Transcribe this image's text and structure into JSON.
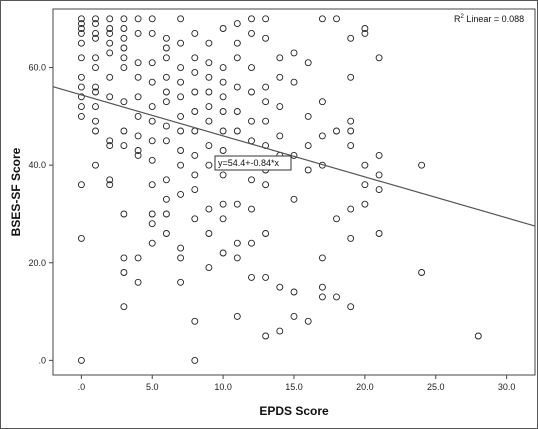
{
  "chart_data": {
    "type": "scatter",
    "xlabel": "EPDS Score",
    "ylabel": "BSES-SF Score",
    "xlim": [
      -2,
      32
    ],
    "ylim": [
      -3,
      72
    ],
    "xticks": [
      ".0",
      "5.0",
      "10.0",
      "15.0",
      "20.0",
      "25.0",
      "30.0"
    ],
    "xtick_values": [
      0,
      5,
      10,
      15,
      20,
      25,
      30
    ],
    "yticks": [
      ".0",
      "20.0",
      "40.0",
      "60.0"
    ],
    "ytick_values": [
      0,
      20,
      40,
      60
    ],
    "r2_label": "R",
    "r2_sup": "2",
    "r2_value": " Linear = 0.088",
    "equation": "y=54.4+-0.84*x",
    "fit": {
      "intercept": 54.4,
      "slope": -0.84,
      "x_range": [
        -2,
        32
      ]
    },
    "grid": false,
    "points": [
      [
        0,
        70
      ],
      [
        0,
        69
      ],
      [
        0,
        68
      ],
      [
        0,
        67
      ],
      [
        0,
        65
      ],
      [
        0,
        62
      ],
      [
        0,
        58
      ],
      [
        0,
        56
      ],
      [
        0,
        54
      ],
      [
        0,
        52
      ],
      [
        0,
        50
      ],
      [
        0,
        36
      ],
      [
        0,
        25
      ],
      [
        0,
        0
      ],
      [
        1,
        70
      ],
      [
        1,
        69
      ],
      [
        1,
        67
      ],
      [
        1,
        66
      ],
      [
        1,
        62
      ],
      [
        1,
        60
      ],
      [
        1,
        56
      ],
      [
        1,
        55
      ],
      [
        1,
        52
      ],
      [
        1,
        49
      ],
      [
        1,
        47
      ],
      [
        1,
        40
      ],
      [
        2,
        70
      ],
      [
        2,
        68
      ],
      [
        2,
        67
      ],
      [
        2,
        65
      ],
      [
        2,
        63
      ],
      [
        2,
        58
      ],
      [
        2,
        54
      ],
      [
        2,
        45
      ],
      [
        2,
        44
      ],
      [
        2,
        37
      ],
      [
        2,
        36
      ],
      [
        3,
        70
      ],
      [
        3,
        68
      ],
      [
        3,
        66
      ],
      [
        3,
        64
      ],
      [
        3,
        62
      ],
      [
        3,
        60
      ],
      [
        3,
        53
      ],
      [
        3,
        47
      ],
      [
        3,
        44
      ],
      [
        3,
        30
      ],
      [
        3,
        21
      ],
      [
        3,
        18
      ],
      [
        3,
        11
      ],
      [
        4,
        70
      ],
      [
        4,
        67
      ],
      [
        4,
        61
      ],
      [
        4,
        58
      ],
      [
        4,
        54
      ],
      [
        4,
        50
      ],
      [
        4,
        46
      ],
      [
        4,
        43
      ],
      [
        4,
        42
      ],
      [
        4,
        21
      ],
      [
        4,
        16
      ],
      [
        5,
        70
      ],
      [
        5,
        67
      ],
      [
        5,
        61
      ],
      [
        5,
        57
      ],
      [
        5,
        52
      ],
      [
        5,
        49
      ],
      [
        5,
        45
      ],
      [
        5,
        41
      ],
      [
        5,
        36
      ],
      [
        5,
        30
      ],
      [
        5,
        28
      ],
      [
        5,
        24
      ],
      [
        6,
        66
      ],
      [
        6,
        64
      ],
      [
        6,
        62
      ],
      [
        6,
        58
      ],
      [
        6,
        55
      ],
      [
        6,
        53
      ],
      [
        6,
        48
      ],
      [
        6,
        45
      ],
      [
        6,
        37
      ],
      [
        6,
        33
      ],
      [
        6,
        30
      ],
      [
        6,
        26
      ],
      [
        7,
        70
      ],
      [
        7,
        65
      ],
      [
        7,
        60
      ],
      [
        7,
        57
      ],
      [
        7,
        54
      ],
      [
        7,
        50
      ],
      [
        7,
        47
      ],
      [
        7,
        43
      ],
      [
        7,
        40
      ],
      [
        7,
        34
      ],
      [
        7,
        23
      ],
      [
        7,
        21
      ],
      [
        7,
        16
      ],
      [
        8,
        67
      ],
      [
        8,
        62
      ],
      [
        8,
        59
      ],
      [
        8,
        55
      ],
      [
        8,
        51
      ],
      [
        8,
        47
      ],
      [
        8,
        42
      ],
      [
        8,
        38
      ],
      [
        8,
        35
      ],
      [
        8,
        29
      ],
      [
        8,
        8
      ],
      [
        8,
        0
      ],
      [
        9,
        65
      ],
      [
        9,
        61
      ],
      [
        9,
        58
      ],
      [
        9,
        55
      ],
      [
        9,
        52
      ],
      [
        9,
        49
      ],
      [
        9,
        44
      ],
      [
        9,
        40
      ],
      [
        9,
        31
      ],
      [
        9,
        26
      ],
      [
        9,
        19
      ],
      [
        10,
        68
      ],
      [
        10,
        60
      ],
      [
        10,
        57
      ],
      [
        10,
        54
      ],
      [
        10,
        51
      ],
      [
        10,
        47
      ],
      [
        10,
        43
      ],
      [
        10,
        38
      ],
      [
        10,
        32
      ],
      [
        10,
        29
      ],
      [
        10,
        22
      ],
      [
        11,
        69
      ],
      [
        11,
        65
      ],
      [
        11,
        62
      ],
      [
        11,
        56
      ],
      [
        11,
        51
      ],
      [
        11,
        47
      ],
      [
        11,
        40
      ],
      [
        11,
        32
      ],
      [
        11,
        24
      ],
      [
        11,
        21
      ],
      [
        11,
        9
      ],
      [
        12,
        70
      ],
      [
        12,
        67
      ],
      [
        12,
        60
      ],
      [
        12,
        55
      ],
      [
        12,
        49
      ],
      [
        12,
        45
      ],
      [
        12,
        37
      ],
      [
        12,
        31
      ],
      [
        12,
        24
      ],
      [
        12,
        17
      ],
      [
        13,
        70
      ],
      [
        13,
        66
      ],
      [
        13,
        56
      ],
      [
        13,
        53
      ],
      [
        13,
        49
      ],
      [
        13,
        44
      ],
      [
        13,
        39
      ],
      [
        13,
        36
      ],
      [
        13,
        26
      ],
      [
        13,
        17
      ],
      [
        13,
        5
      ],
      [
        14,
        62
      ],
      [
        14,
        58
      ],
      [
        14,
        52
      ],
      [
        14,
        46
      ],
      [
        14,
        42
      ],
      [
        14,
        40
      ],
      [
        14,
        15
      ],
      [
        14,
        6
      ],
      [
        15,
        63
      ],
      [
        15,
        57
      ],
      [
        15,
        42
      ],
      [
        15,
        33
      ],
      [
        15,
        14
      ],
      [
        15,
        9
      ],
      [
        16,
        61
      ],
      [
        16,
        50
      ],
      [
        16,
        44
      ],
      [
        16,
        39
      ],
      [
        16,
        8
      ],
      [
        17,
        70
      ],
      [
        17,
        53
      ],
      [
        17,
        46
      ],
      [
        17,
        40
      ],
      [
        17,
        21
      ],
      [
        17,
        15
      ],
      [
        17,
        13
      ],
      [
        18,
        70
      ],
      [
        18,
        47
      ],
      [
        18,
        29
      ],
      [
        18,
        13
      ],
      [
        19,
        66
      ],
      [
        19,
        58
      ],
      [
        19,
        49
      ],
      [
        19,
        47
      ],
      [
        19,
        44
      ],
      [
        19,
        31
      ],
      [
        19,
        25
      ],
      [
        19,
        11
      ],
      [
        20,
        68
      ],
      [
        20,
        67
      ],
      [
        20,
        40
      ],
      [
        20,
        36
      ],
      [
        20,
        32
      ],
      [
        21,
        62
      ],
      [
        21,
        42
      ],
      [
        21,
        38
      ],
      [
        21,
        35
      ],
      [
        21,
        26
      ],
      [
        24,
        40
      ],
      [
        24,
        18
      ],
      [
        28,
        5
      ]
    ]
  }
}
